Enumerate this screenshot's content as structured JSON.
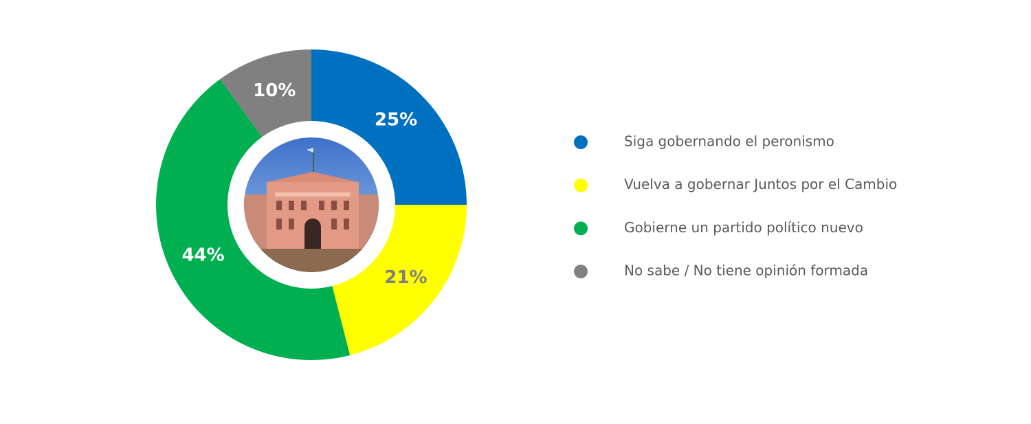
{
  "chart_data": {
    "type": "donut",
    "categories": [
      "Siga gobernando el peronismo",
      "Vuelva a gobernar Juntos por el Cambio",
      "Gobierne un partido político nuevo",
      "No sabe / No tiene opinión formada"
    ],
    "values": [
      25,
      21,
      44,
      10
    ],
    "value_labels": [
      "25%",
      "21%",
      "44%",
      "10%"
    ],
    "colors": [
      "#0070c0",
      "#ffff00",
      "#00b050",
      "#808080"
    ],
    "label_colors": [
      "#ffffff",
      "#7f7f7f",
      "#ffffff",
      "#ffffff"
    ],
    "legend": "right"
  }
}
